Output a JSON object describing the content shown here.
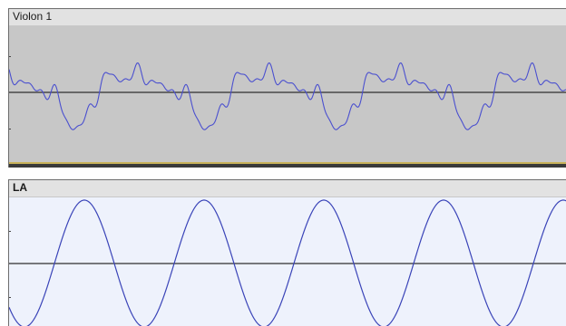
{
  "tracks": [
    {
      "name": "Violon 1",
      "waveform_color": "#4a4fcf",
      "background": "#c7c7c7"
    },
    {
      "name": "LA",
      "waveform_color": "#3a44b8",
      "background": "#eef2fc"
    }
  ],
  "colors": {
    "header": "#e2e2e2",
    "centerline": "#2e2e2e",
    "selection_strip": "#c9b25a"
  }
}
